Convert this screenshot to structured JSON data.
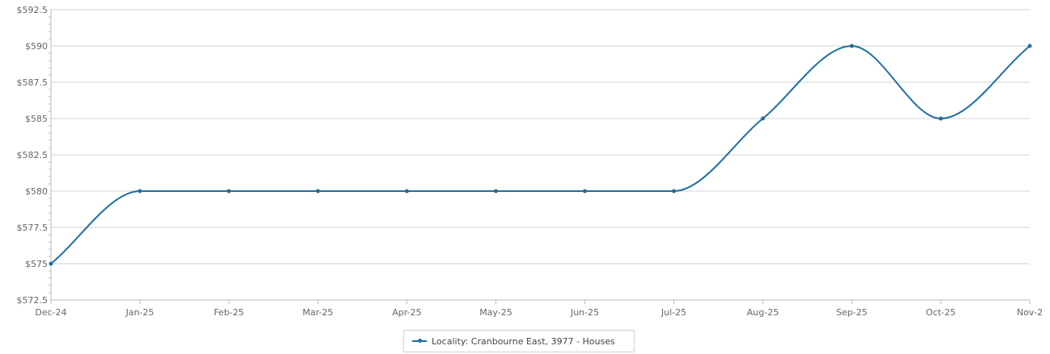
{
  "chart_data": {
    "type": "line",
    "categories": [
      "Dec-24",
      "Jan-25",
      "Feb-25",
      "Mar-25",
      "Apr-25",
      "May-25",
      "Jun-25",
      "Jul-25",
      "Aug-25",
      "Sep-25",
      "Oct-25",
      "Nov-2"
    ],
    "series": [
      {
        "name": "Locality: Cranbourne East, 3977 - Houses",
        "values": [
          575,
          580,
          580,
          580,
          580,
          580,
          580,
          580,
          585,
          590,
          585,
          590
        ],
        "color": "#1f6f9f"
      }
    ],
    "ylim": [
      572.5,
      592.5
    ],
    "yticks": [
      572.5,
      575,
      577.5,
      580,
      582.5,
      585,
      587.5,
      590,
      592.5
    ],
    "ytick_labels": [
      "$572.5",
      "$575",
      "$577.5",
      "$580",
      "$582.5",
      "$585",
      "$587.5",
      "$590",
      "$592.5"
    ],
    "grid": true,
    "legend_position": "bottom-center",
    "smooth": true
  }
}
